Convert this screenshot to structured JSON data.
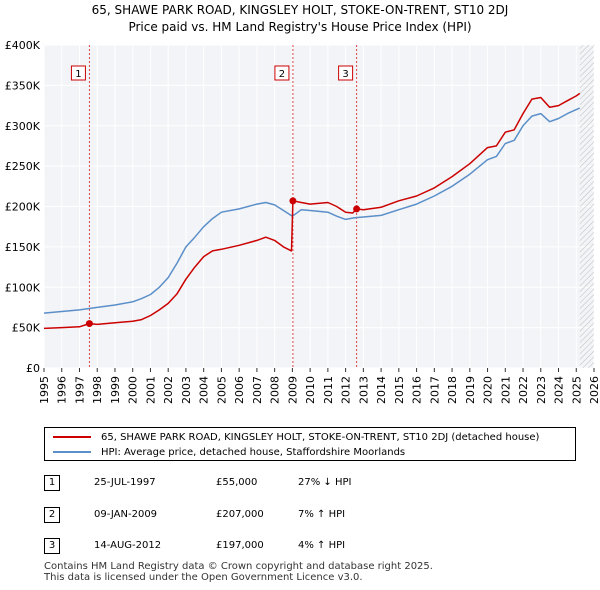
{
  "chart_data": {
    "type": "line",
    "title": "65, SHAWE PARK ROAD, KINGSLEY HOLT, STOKE-ON-TRENT, ST10 2DJ",
    "subtitle": "Price paid vs. HM Land Registry's House Price Index (HPI)",
    "xlabel": "",
    "ylabel": "",
    "xlim": [
      1995,
      2026
    ],
    "ylim": [
      0,
      400000
    ],
    "x_ticks": [
      "1995",
      "1996",
      "1997",
      "1998",
      "1999",
      "2000",
      "2001",
      "2002",
      "2003",
      "2004",
      "2005",
      "2006",
      "2007",
      "2008",
      "2009",
      "2010",
      "2011",
      "2012",
      "2013",
      "2014",
      "2015",
      "2016",
      "2017",
      "2018",
      "2019",
      "2020",
      "2021",
      "2022",
      "2023",
      "2024",
      "2025",
      "2026"
    ],
    "y_ticks": [
      {
        "value": 0,
        "label": "£0"
      },
      {
        "value": 50000,
        "label": "£50K"
      },
      {
        "value": 100000,
        "label": "£100K"
      },
      {
        "value": 150000,
        "label": "£150K"
      },
      {
        "value": 200000,
        "label": "£200K"
      },
      {
        "value": 250000,
        "label": "£250K"
      },
      {
        "value": 300000,
        "label": "£300K"
      },
      {
        "value": 350000,
        "label": "£350K"
      },
      {
        "value": 400000,
        "label": "£400K"
      }
    ],
    "grid": true,
    "hatch_from_year": 2025.2,
    "series": [
      {
        "name": "65, SHAWE PARK ROAD, KINGSLEY HOLT, STOKE-ON-TRENT, ST10 2DJ (detached house)",
        "color": "#cc0000",
        "x": [
          1995,
          1996,
          1997,
          1997.56,
          1998,
          1999,
          2000,
          2000.5,
          2001,
          2001.5,
          2002,
          2002.5,
          2003,
          2003.5,
          2004,
          2004.5,
          2005,
          2006,
          2007,
          2007.5,
          2008,
          2008.5,
          2008.95,
          2009.03,
          2009.5,
          2010,
          2011,
          2011.5,
          2012,
          2012.4,
          2012.62,
          2013,
          2014,
          2015,
          2016,
          2017,
          2018,
          2019,
          2020,
          2020.5,
          2021,
          2021.5,
          2022,
          2022.5,
          2023,
          2023.5,
          2024,
          2024.5,
          2025,
          2025.2
        ],
        "y": [
          49000,
          50000,
          51000,
          55000,
          54000,
          56000,
          58000,
          60000,
          65000,
          72000,
          80000,
          92000,
          110000,
          125000,
          138000,
          145000,
          147000,
          152000,
          158000,
          162000,
          158000,
          150000,
          145000,
          207000,
          205000,
          203000,
          205000,
          200000,
          193000,
          192000,
          197000,
          196000,
          199000,
          207000,
          213000,
          223000,
          237000,
          253000,
          273000,
          275000,
          292000,
          295000,
          315000,
          333000,
          335000,
          323000,
          325000,
          331000,
          337000,
          340000
        ]
      },
      {
        "name": "HPI: Average price, detached house, Staffordshire Moorlands",
        "color": "#5b8fc9",
        "x": [
          1995,
          1996,
          1997,
          1998,
          1999,
          2000,
          2000.5,
          2001,
          2001.5,
          2002,
          2002.5,
          2003,
          2003.5,
          2004,
          2004.5,
          2005,
          2006,
          2007,
          2007.5,
          2008,
          2008.5,
          2009,
          2009.5,
          2010,
          2011,
          2011.5,
          2012,
          2012.5,
          2013,
          2014,
          2015,
          2016,
          2017,
          2018,
          2019,
          2020,
          2020.5,
          2021,
          2021.5,
          2022,
          2022.5,
          2023,
          2023.5,
          2024,
          2024.5,
          2025,
          2025.2
        ],
        "y": [
          68000,
          70000,
          72000,
          75000,
          78000,
          82000,
          86000,
          91000,
          100000,
          112000,
          130000,
          150000,
          162000,
          175000,
          185000,
          193000,
          197000,
          203000,
          205000,
          202000,
          195000,
          188000,
          196000,
          195000,
          193000,
          188000,
          184000,
          186000,
          187000,
          189000,
          196000,
          203000,
          213000,
          225000,
          240000,
          258000,
          262000,
          278000,
          282000,
          300000,
          312000,
          315000,
          305000,
          309000,
          315000,
          320000,
          322000
        ]
      }
    ],
    "markers": [
      {
        "label": "1",
        "x": 1997.56,
        "y": 55000
      },
      {
        "label": "2",
        "x": 2009.03,
        "y": 207000
      },
      {
        "label": "3",
        "x": 2012.62,
        "y": 197000
      }
    ]
  },
  "legend": [
    {
      "label": "65, SHAWE PARK ROAD, KINGSLEY HOLT, STOKE-ON-TRENT, ST10 2DJ (detached house)",
      "color": "#cc0000"
    },
    {
      "label": "HPI: Average price, detached house, Staffordshire Moorlands",
      "color": "#5b8fc9"
    }
  ],
  "sales": [
    {
      "num": "1",
      "date": "25-JUL-1997",
      "price": "£55,000",
      "hpi": "27% ↓ HPI"
    },
    {
      "num": "2",
      "date": "09-JAN-2009",
      "price": "£207,000",
      "hpi": "7% ↑ HPI"
    },
    {
      "num": "3",
      "date": "14-AUG-2012",
      "price": "£197,000",
      "hpi": "4% ↑ HPI"
    }
  ],
  "footer": {
    "line1": "Contains HM Land Registry data © Crown copyright and database right 2025.",
    "line2": "This data is licensed under the Open Government Licence v3.0."
  }
}
